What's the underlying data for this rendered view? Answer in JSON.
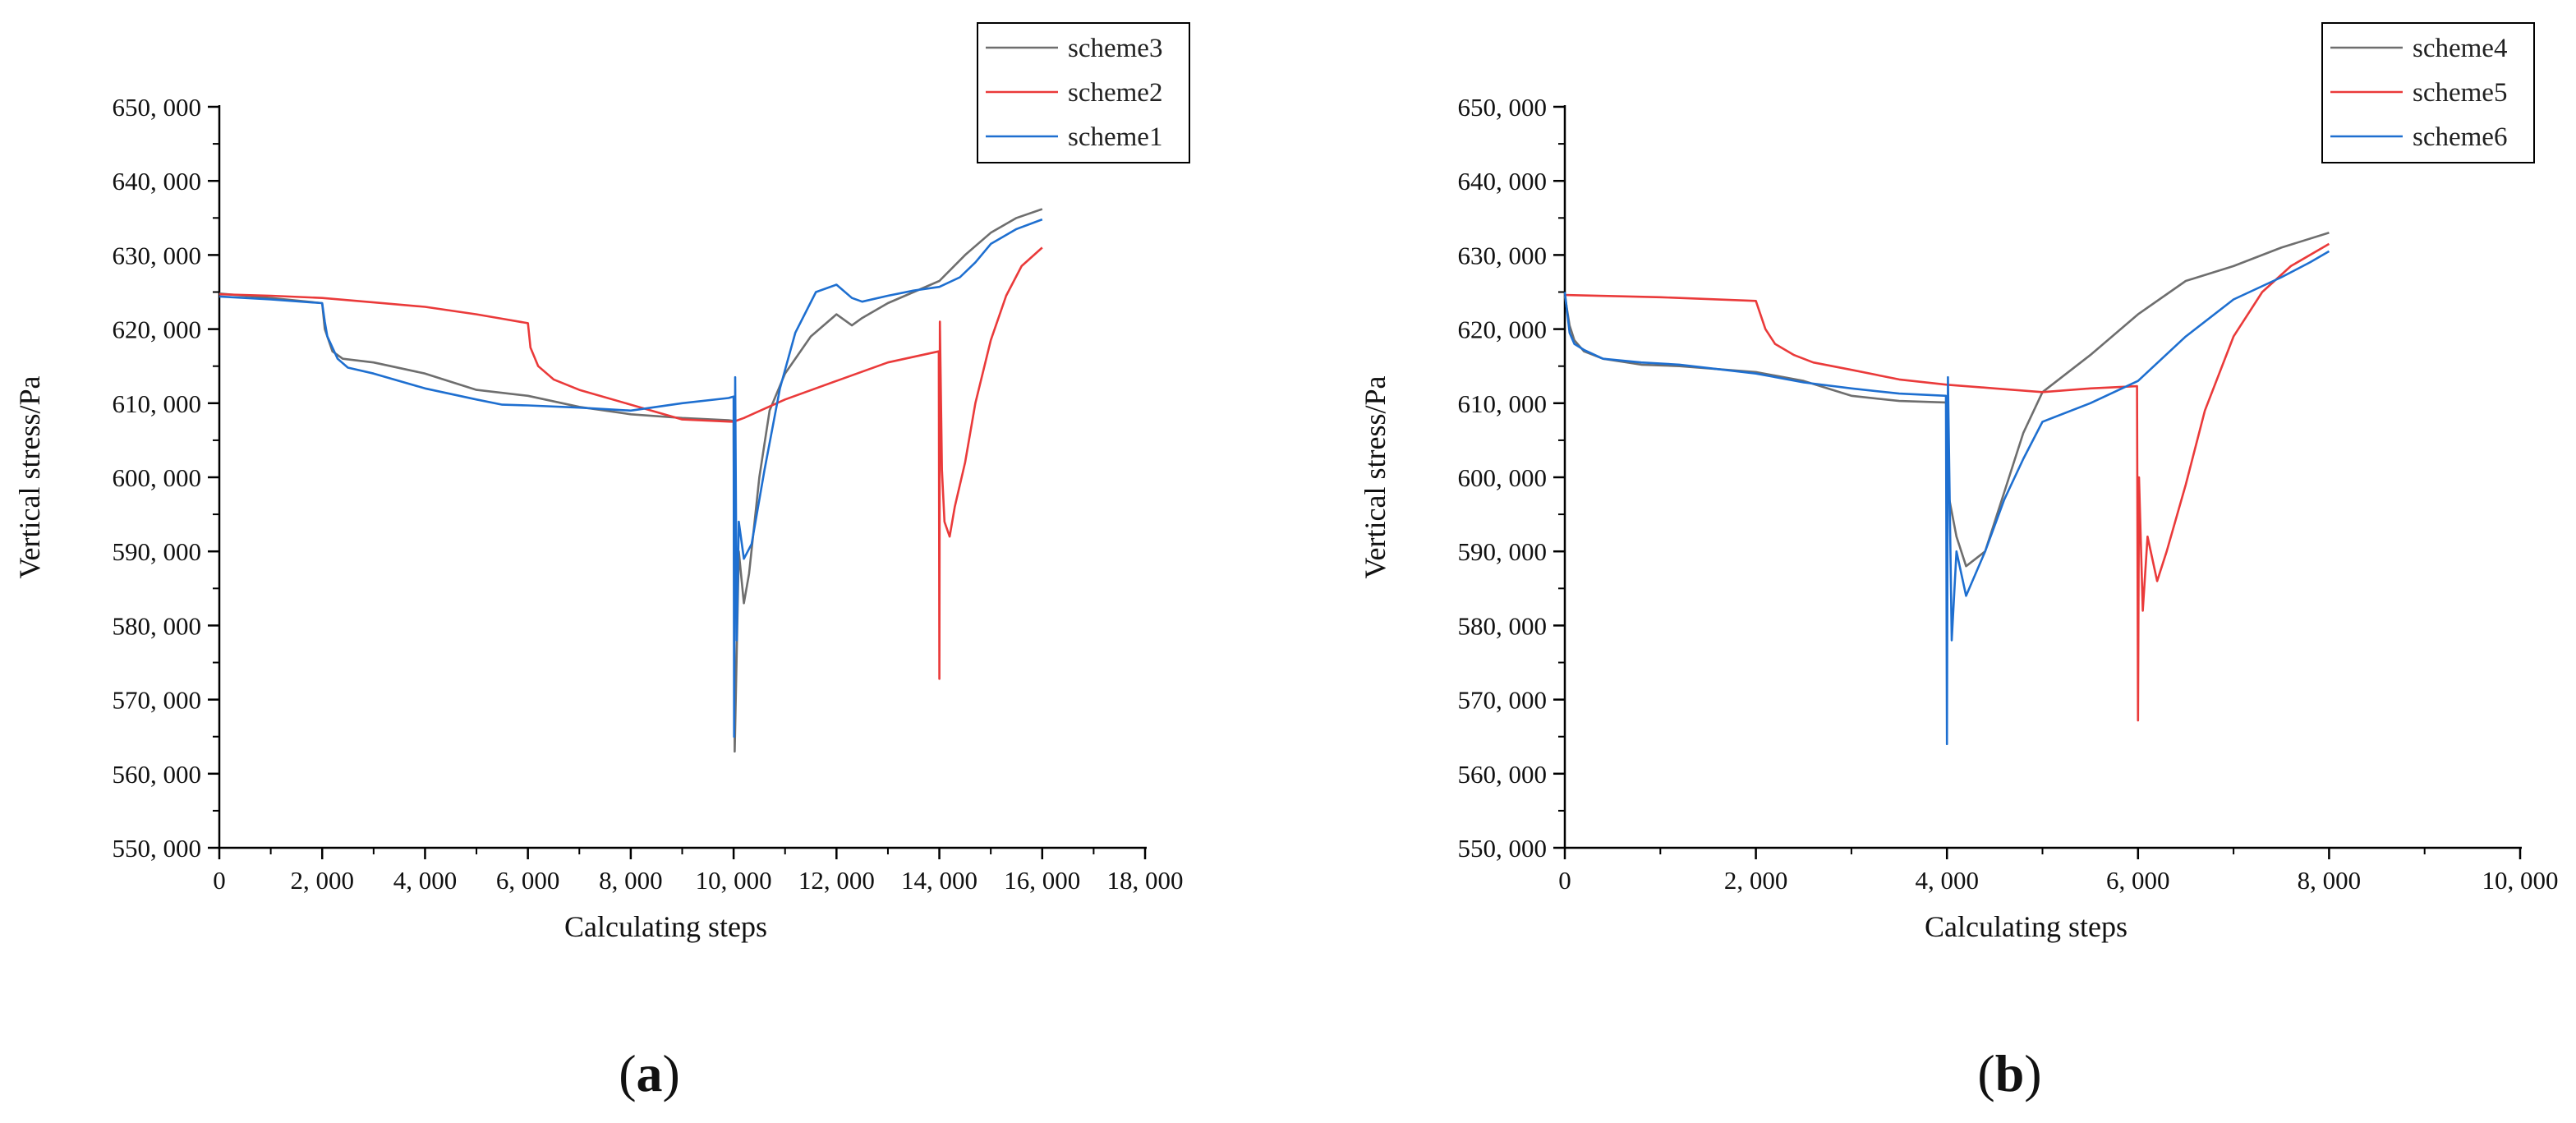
{
  "chart_data": [
    {
      "type": "line",
      "panel_label": "a",
      "xlabel": "Calculating steps",
      "ylabel": "Vertical stress/Pa",
      "xlim": [
        0,
        18000
      ],
      "ylim": [
        550000,
        650000
      ],
      "x_ticks": [
        0,
        2000,
        4000,
        6000,
        8000,
        10000,
        12000,
        14000,
        16000,
        18000
      ],
      "x_tick_labels": [
        "0",
        "2, 000",
        "4, 000",
        "6, 000",
        "8, 000",
        "10, 000",
        "12, 000",
        "14, 000",
        "16, 000",
        "18, 000"
      ],
      "y_ticks": [
        550000,
        560000,
        570000,
        580000,
        590000,
        600000,
        610000,
        620000,
        630000,
        640000,
        650000
      ],
      "y_tick_labels": [
        "550, 000",
        "560, 000",
        "570, 000",
        "580, 000",
        "590, 000",
        "600, 000",
        "610, 000",
        "620, 000",
        "630, 000",
        "640, 000",
        "650, 000"
      ],
      "legend_position": "top-right",
      "series": [
        {
          "name": "scheme3",
          "color": "#6e6e6e",
          "x": [
            0,
            1000,
            2000,
            2050,
            2200,
            2400,
            3000,
            4000,
            5000,
            6000,
            7000,
            8000,
            9000,
            9900,
            10000,
            10020,
            10100,
            10200,
            10300,
            10500,
            10700,
            11000,
            11500,
            12000,
            12300,
            12500,
            13000,
            13500,
            14000,
            14500,
            15000,
            15500,
            16000
          ],
          "y": [
            624800,
            624200,
            623500,
            620000,
            617000,
            616000,
            615500,
            614000,
            611800,
            611000,
            609500,
            608500,
            608000,
            607700,
            607600,
            563000,
            590000,
            583000,
            587000,
            600000,
            609000,
            614000,
            619000,
            622000,
            620500,
            621500,
            623500,
            625000,
            626500,
            630000,
            633000,
            635000,
            636200
          ]
        },
        {
          "name": "scheme2",
          "color": "#ea3a3a",
          "x": [
            0,
            1000,
            2000,
            3000,
            4000,
            5000,
            5500,
            6000,
            6050,
            6200,
            6500,
            7000,
            8000,
            9000,
            10000,
            10200,
            11000,
            12000,
            13000,
            13990,
            14000,
            14010,
            14050,
            14100,
            14200,
            14300,
            14500,
            14700,
            15000,
            15300,
            15600,
            16000
          ],
          "y": [
            624700,
            624500,
            624200,
            623600,
            623000,
            622000,
            621400,
            620800,
            617500,
            615000,
            613200,
            611800,
            609800,
            607800,
            607500,
            608000,
            610500,
            613000,
            615500,
            617000,
            572800,
            621000,
            601000,
            594000,
            592000,
            596000,
            602000,
            610000,
            618500,
            624500,
            628500,
            631000
          ]
        },
        {
          "name": "scheme1",
          "color": "#1e6fd0",
          "x": [
            0,
            1000,
            2000,
            2050,
            2100,
            2300,
            2500,
            3000,
            4000,
            5000,
            5500,
            6000,
            7000,
            8000,
            9000,
            9900,
            10000,
            10010,
            10030,
            10060,
            10100,
            10200,
            10350,
            10600,
            10900,
            11200,
            11600,
            12000,
            12300,
            12500,
            13000,
            13500,
            14000,
            14400,
            14700,
            15000,
            15500,
            16000
          ],
          "y": [
            624400,
            624000,
            623500,
            621000,
            619000,
            616000,
            614800,
            614000,
            612000,
            610500,
            609800,
            609700,
            609400,
            609000,
            610000,
            610700,
            610900,
            565000,
            613500,
            578000,
            594000,
            589000,
            591000,
            601000,
            612000,
            619500,
            625000,
            626000,
            624200,
            623700,
            624500,
            625200,
            625700,
            627000,
            629000,
            631500,
            633500,
            634800
          ]
        }
      ]
    },
    {
      "type": "line",
      "panel_label": "b",
      "xlabel": "Calculating steps",
      "ylabel": "Vertical stress/Pa",
      "xlim": [
        0,
        10000
      ],
      "ylim": [
        550000,
        650000
      ],
      "x_ticks": [
        0,
        2000,
        4000,
        6000,
        8000,
        10000
      ],
      "x_tick_labels": [
        "0",
        "2, 000",
        "4, 000",
        "6, 000",
        "8, 000",
        "10, 000"
      ],
      "y_ticks": [
        550000,
        560000,
        570000,
        580000,
        590000,
        600000,
        610000,
        620000,
        630000,
        640000,
        650000
      ],
      "y_tick_labels": [
        "550, 000",
        "560, 000",
        "570, 000",
        "580, 000",
        "590, 000",
        "600, 000",
        "610, 000",
        "620, 000",
        "630, 000",
        "640, 000",
        "650, 000"
      ],
      "legend_position": "top-right",
      "series": [
        {
          "name": "scheme4",
          "color": "#6e6e6e",
          "x": [
            0,
            50,
            100,
            200,
            400,
            800,
            1200,
            2000,
            2500,
            3000,
            3500,
            3990,
            4000,
            4010,
            4100,
            4200,
            4400,
            4600,
            4800,
            5000,
            5500,
            6000,
            6500,
            7000,
            7500,
            8000
          ],
          "y": [
            624500,
            620500,
            618500,
            617000,
            616000,
            615200,
            615000,
            614200,
            613000,
            611000,
            610300,
            610100,
            610300,
            598000,
            592000,
            588000,
            590000,
            598000,
            606000,
            611500,
            616500,
            622000,
            626500,
            628500,
            631000,
            633000
          ]
        },
        {
          "name": "scheme5",
          "color": "#ea3a3a",
          "x": [
            0,
            1000,
            2000,
            2100,
            2200,
            2400,
            2600,
            3000,
            3500,
            4000,
            4500,
            5000,
            5500,
            5990,
            6000,
            6010,
            6050,
            6100,
            6200,
            6300,
            6500,
            6700,
            7000,
            7300,
            7600,
            8000
          ],
          "y": [
            624600,
            624300,
            623800,
            620000,
            618000,
            616500,
            615500,
            614500,
            613200,
            612500,
            612000,
            611500,
            612000,
            612300,
            567200,
            600000,
            582000,
            592000,
            586000,
            590000,
            599000,
            609000,
            619000,
            625000,
            628500,
            631500
          ]
        },
        {
          "name": "scheme6",
          "color": "#1e6fd0",
          "x": [
            0,
            50,
            100,
            200,
            400,
            800,
            1200,
            2000,
            2500,
            3000,
            3500,
            3990,
            4000,
            4010,
            4050,
            4100,
            4200,
            4400,
            4600,
            4800,
            5000,
            5500,
            6000,
            6500,
            7000,
            7500,
            7800,
            8000
          ],
          "y": [
            625000,
            619500,
            618000,
            617200,
            616000,
            615500,
            615200,
            614000,
            612800,
            612000,
            611300,
            611000,
            564000,
            613500,
            578000,
            590000,
            584000,
            590000,
            597000,
            602500,
            607500,
            610000,
            613000,
            619000,
            624000,
            627000,
            629000,
            630500
          ]
        }
      ]
    }
  ]
}
